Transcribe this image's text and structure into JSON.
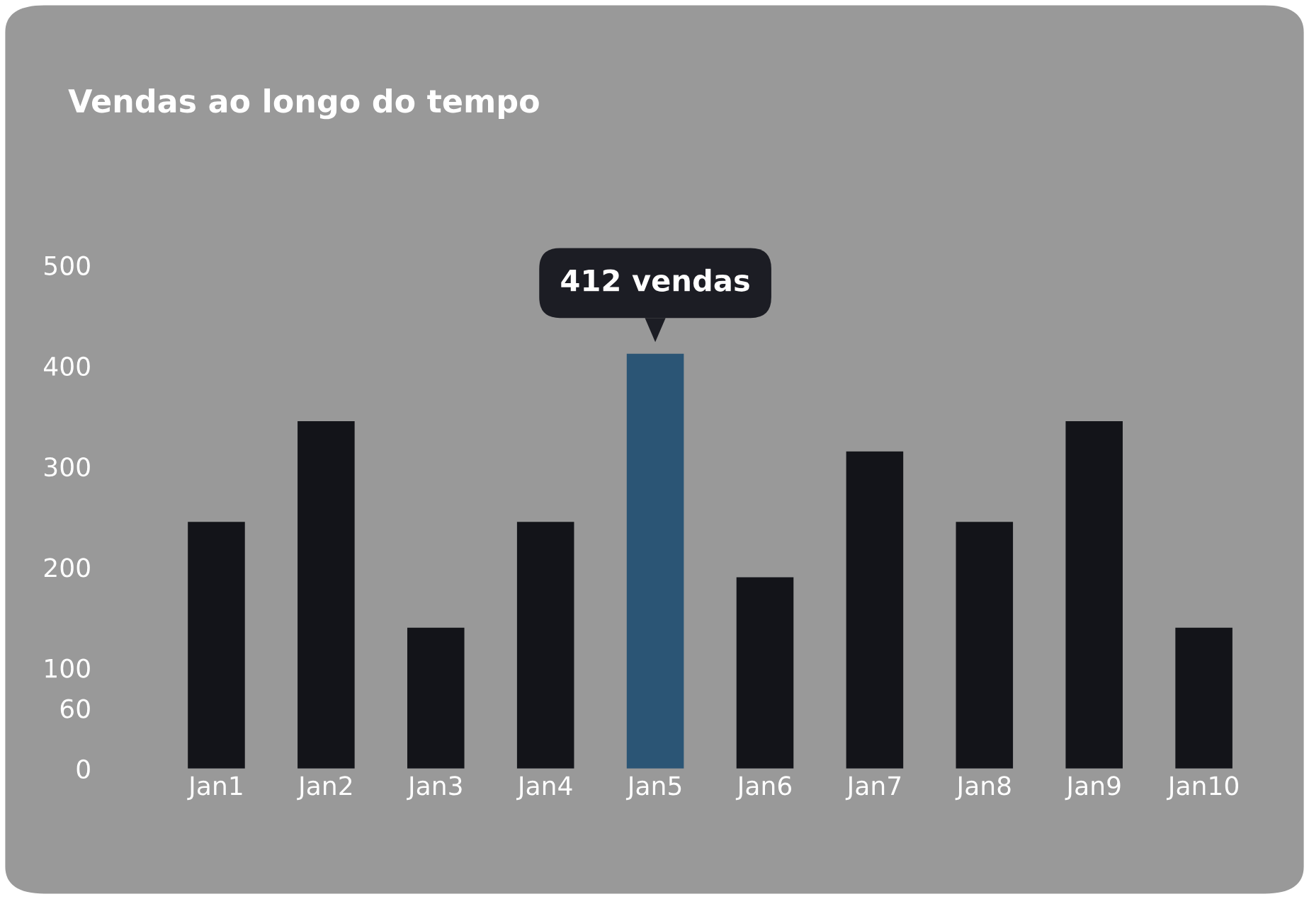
{
  "chart_data": {
    "type": "bar",
    "title": "Vendas ao longo do tempo",
    "categories": [
      "Jan1",
      "Jan2",
      "Jan3",
      "Jan4",
      "Jan5",
      "Jan6",
      "Jan7",
      "Jan8",
      "Jan9",
      "Jan10"
    ],
    "values": [
      245,
      345,
      140,
      245,
      412,
      190,
      315,
      245,
      345,
      140
    ],
    "colors": [
      "#131419",
      "#131419",
      "#131419",
      "#131419",
      "#2b5575",
      "#131419",
      "#131419",
      "#131419",
      "#131419",
      "#131419"
    ],
    "ylim": [
      0,
      500
    ],
    "yticks": [
      0,
      60,
      100,
      200,
      300,
      400,
      500
    ],
    "grid": false,
    "legend": false,
    "annotations": [
      {
        "text": "412 vendas",
        "x": "Jan5",
        "y": 412
      }
    ]
  }
}
